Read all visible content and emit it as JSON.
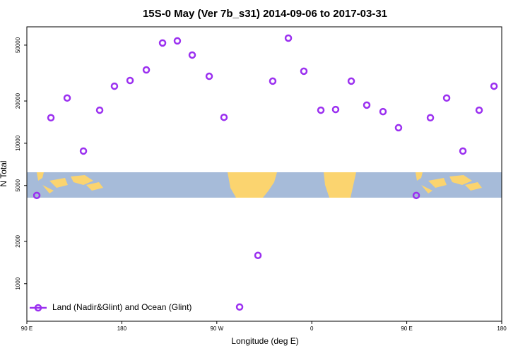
{
  "chart_data": {
    "type": "scatter",
    "title": "15S-0 May (Ver 7b_s31)   2014-09-06 to 2017-03-31",
    "x_label": "Longitude (deg E)",
    "y_label": "N Total",
    "xlim": [
      90,
      540
    ],
    "xticks": [
      {
        "value": 90,
        "label": "90 E"
      },
      180,
      {
        "value": 270,
        "label": "90 W"
      },
      {
        "value": 360,
        "label": "0"
      },
      {
        "value": 450,
        "label": "90 E"
      },
      {
        "value": 540,
        "label": "180"
      }
    ],
    "ylim": [
      540,
      67500
    ],
    "y_scale": "log",
    "yticks": [
      1000,
      2000,
      5000,
      10000,
      20000,
      50000
    ],
    "legend": "bottom-left",
    "series": [
      {
        "name": "Land (Nadir&Glint) and Ocean (Glint)",
        "color": "#9b30f0",
        "x": [
          99.4,
          112.8,
          128.2,
          143.6,
          159,
          173,
          187.8,
          203.2,
          218.6,
          232.6,
          246.7,
          262.8,
          276.8,
          291.6,
          309,
          323,
          337.8,
          352.5,
          368.6,
          382.6,
          397.4,
          412.1,
          427.5,
          442.2,
          459,
          472.4,
          487.8,
          503.2,
          518.6,
          532.7
        ],
        "values": [
          4250,
          15200,
          21000,
          8800,
          17200,
          25500,
          28000,
          33300,
          51800,
          53600,
          42500,
          30000,
          15300,
          682,
          1590,
          27700,
          56100,
          32600,
          17200,
          17400,
          27700,
          18700,
          16800,
          12900,
          4250,
          15200,
          21000,
          8800,
          17200,
          25500
        ]
      }
    ]
  }
}
